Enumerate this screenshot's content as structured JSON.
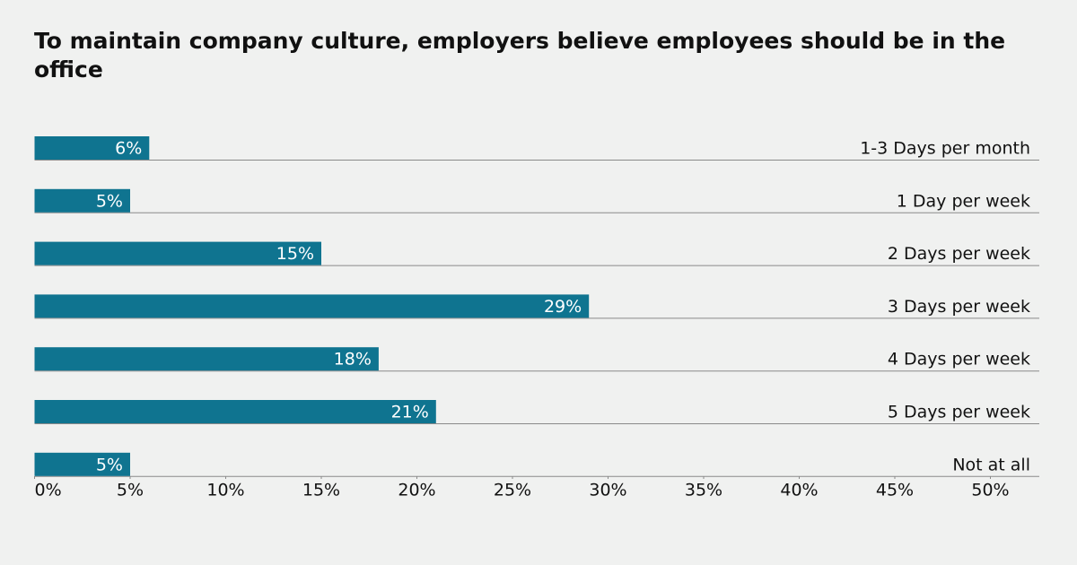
{
  "chart_data": {
    "type": "bar",
    "orientation": "horizontal",
    "title": "To maintain company culture, employers believe employees should be in the office",
    "categories": [
      "1-3 Days per month",
      "1 Day per week",
      "2 Days per week",
      "3 Days per week",
      "4 Days per week",
      "5 Days per week",
      "Not at all"
    ],
    "values": [
      6,
      5,
      15,
      29,
      18,
      21,
      5
    ],
    "value_labels": [
      "6%",
      "5%",
      "15%",
      "29%",
      "18%",
      "21%",
      "5%"
    ],
    "color": "#0f7490",
    "xlim": [
      0,
      50
    ],
    "xticks": [
      {
        "value": 0,
        "label": "0%"
      },
      {
        "value": 5,
        "label": "5%"
      },
      {
        "value": 10,
        "label": "10%"
      },
      {
        "value": 15,
        "label": "15%"
      },
      {
        "value": 20,
        "label": "20%"
      },
      {
        "value": 25,
        "label": "25%"
      },
      {
        "value": 30,
        "label": "30%"
      },
      {
        "value": 35,
        "label": "35%"
      },
      {
        "value": 40,
        "label": "40%"
      },
      {
        "value": 45,
        "label": "45%"
      },
      {
        "value": 50,
        "label": "50%"
      }
    ]
  }
}
